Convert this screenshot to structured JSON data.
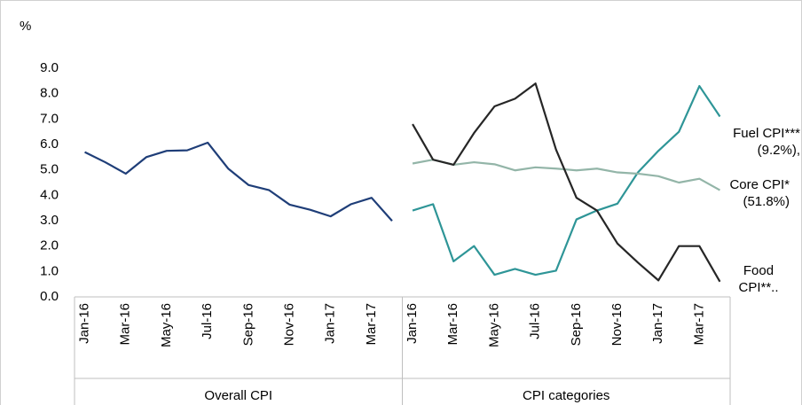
{
  "chart_data": {
    "type": "line",
    "y_label": "%",
    "groups": [
      {
        "label": "Overall CPI",
        "start": 0,
        "end": 15
      },
      {
        "label": "CPI categories",
        "start": 16,
        "end": 31
      }
    ],
    "categories": [
      "Jan-16",
      null,
      "Mar-16",
      null,
      "May-16",
      null,
      "Jul-16",
      null,
      "Sep-16",
      null,
      "Nov-16",
      null,
      "Jan-17",
      null,
      "Mar-17",
      null,
      "Jan-16",
      null,
      "Mar-16",
      null,
      "May-16",
      null,
      "Jul-16",
      null,
      "Sep-16",
      null,
      "Nov-16",
      null,
      "Jan-17",
      null,
      "Mar-17",
      null
    ],
    "ylim": [
      0,
      9
    ],
    "yticks": [
      {
        "value": 0,
        "label": "0.0"
      },
      {
        "value": 1,
        "label": "1.0"
      },
      {
        "value": 2,
        "label": "2.0"
      },
      {
        "value": 3,
        "label": "3.0"
      },
      {
        "value": 4,
        "label": "4.0"
      },
      {
        "value": 5,
        "label": "5.0"
      },
      {
        "value": 6,
        "label": "6.0"
      },
      {
        "value": 7,
        "label": "7.0"
      },
      {
        "value": 8,
        "label": "8.0"
      },
      {
        "value": 9,
        "label": "9.0"
      }
    ],
    "grid": false,
    "series": [
      {
        "color": "#1f3e78",
        "values": [
          5.7,
          5.3,
          4.85,
          5.5,
          5.75,
          5.77,
          6.07,
          5.05,
          4.4,
          4.2,
          3.63,
          3.43,
          3.17,
          3.65,
          3.9,
          2.99,
          null,
          null,
          null,
          null,
          null,
          null,
          null,
          null,
          null,
          null,
          null,
          null,
          null,
          null,
          null,
          null
        ]
      },
      {
        "name": "Fuel CPI*** (9.2%),",
        "color": "#2e9597",
        "values": [
          null,
          null,
          null,
          null,
          null,
          null,
          null,
          null,
          null,
          null,
          null,
          null,
          null,
          null,
          null,
          null,
          3.4,
          3.65,
          1.4,
          2.0,
          0.87,
          1.1,
          0.87,
          1.03,
          3.05,
          3.4,
          3.67,
          4.9,
          5.75,
          6.5,
          8.3,
          7.1
        ]
      },
      {
        "name": "Core CPI* (51.8%)",
        "color": "#93b5a8",
        "values": [
          null,
          null,
          null,
          null,
          null,
          null,
          null,
          null,
          null,
          null,
          null,
          null,
          null,
          null,
          null,
          null,
          5.25,
          5.4,
          5.2,
          5.3,
          5.22,
          4.98,
          5.1,
          5.05,
          4.98,
          5.05,
          4.9,
          4.85,
          4.75,
          4.5,
          4.65,
          4.2
        ]
      },
      {
        "name": "Food CPI**..",
        "color": "#262626",
        "values": [
          null,
          null,
          null,
          null,
          null,
          null,
          null,
          null,
          null,
          null,
          null,
          null,
          null,
          null,
          null,
          null,
          6.8,
          5.4,
          5.2,
          6.45,
          7.5,
          7.8,
          8.4,
          5.8,
          3.9,
          3.4,
          2.1,
          1.35,
          0.65,
          2.0,
          2.0,
          0.6
        ]
      }
    ]
  }
}
